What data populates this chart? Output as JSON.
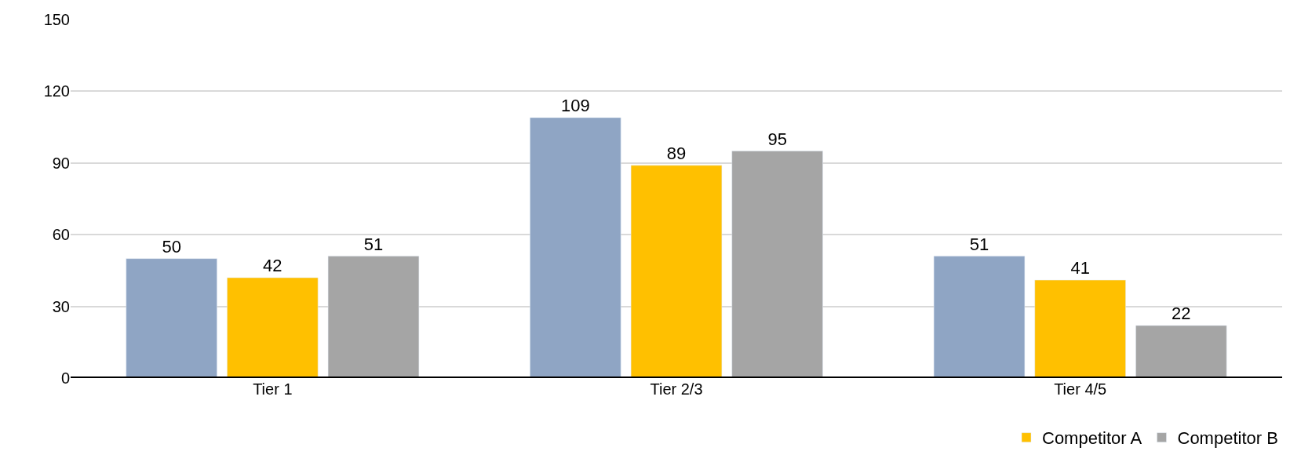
{
  "chart_data": {
    "type": "bar",
    "categories": [
      "Tier 1",
      "Tier 2/3",
      "Tier 4/5"
    ],
    "series": [
      {
        "color": "#8fa5c4",
        "values": [
          50,
          109,
          51
        ]
      },
      {
        "name": "Competitor A",
        "color": "#ffc000",
        "values": [
          42,
          89,
          41
        ]
      },
      {
        "name": "Competitor B",
        "color": "#a5a5a5",
        "values": [
          51,
          95,
          22
        ]
      }
    ],
    "ylim": [
      0,
      150
    ],
    "yticks": [
      0,
      30,
      60,
      90,
      120,
      150
    ],
    "grid": "y",
    "legend": "bottom right",
    "data_labels": true
  }
}
